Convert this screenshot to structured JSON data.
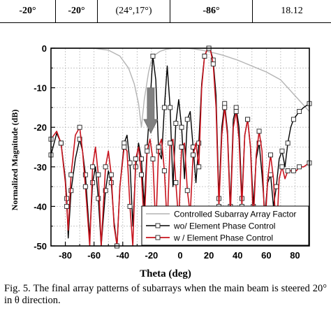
{
  "table_row": [
    "-20°",
    "-20°",
    "(24°,17°)",
    "-86°",
    "18.12"
  ],
  "table_bold": [
    true,
    true,
    false,
    true,
    false
  ],
  "caption": "Fig. 5. The final array patterns of subarrays when the main beam is steered 20° in θ direction.",
  "colors": {
    "af": "#b4b4b4",
    "wo": "#000000",
    "w": "#c8141e",
    "arrow": "#808080",
    "marker_fill": "#ffffff"
  },
  "chart_data": {
    "type": "line",
    "xlabel": "Theta (deg)",
    "ylabel": "Normalized Magnitude (dB)",
    "xlim": [
      -90,
      90
    ],
    "ylim": [
      -50,
      0
    ],
    "xticks": [
      -80,
      -60,
      -40,
      -20,
      0,
      20,
      40,
      60,
      80
    ],
    "yticks": [
      0,
      -10,
      -20,
      -30,
      -40,
      -50
    ],
    "grid": true,
    "legend_position": "bottom-right",
    "annotation": "gray down arrow near theta = -20 deg",
    "series": [
      {
        "name": "Controlled Subarray Array Factor",
        "marker": "none",
        "x": [
          -90,
          -80,
          -70,
          -60,
          -50,
          -42,
          -36,
          -32,
          -29,
          -27,
          -25,
          -22,
          -20,
          -18,
          -14,
          -10,
          -5,
          0,
          5,
          10,
          15,
          20,
          25,
          30,
          40,
          50,
          60,
          70,
          75,
          80,
          85,
          90
        ],
        "y": [
          0,
          0,
          0,
          0,
          -0.5,
          -2,
          -5,
          -9,
          -14,
          -20,
          -13,
          -6,
          -3,
          -1.8,
          -0.8,
          -0.3,
          0,
          0,
          0,
          -0.2,
          -0.5,
          -0.9,
          -1.3,
          -1.8,
          -3,
          -4.5,
          -6,
          -8,
          -10,
          -12,
          -14,
          -16
        ]
      },
      {
        "name": "wo/ Element Phase Control",
        "marker": "square",
        "x": [
          -90,
          -86,
          -83,
          -80,
          -79,
          -78,
          -76,
          -73,
          -70,
          -68,
          -66,
          -63,
          -61,
          -59,
          -57,
          -55,
          -52,
          -50,
          -48,
          -46,
          -44,
          -42,
          -39,
          -37,
          -35,
          -33,
          -31,
          -29,
          -27,
          -25,
          -23,
          -21,
          -19,
          -17,
          -15,
          -13,
          -11,
          -9,
          -7,
          -5,
          -3,
          -1,
          1,
          3,
          5,
          7,
          9,
          11,
          13,
          15,
          17,
          19,
          20,
          21,
          23,
          25,
          27,
          29,
          31,
          33,
          35,
          37,
          39,
          41,
          43,
          45,
          47,
          49,
          51,
          53,
          55,
          57,
          59,
          61,
          63,
          65,
          67,
          69,
          71,
          73,
          75,
          77,
          79,
          81,
          83,
          86,
          90
        ],
        "y": [
          -27,
          -21.5,
          -24,
          -33,
          -38,
          -48,
          -36,
          -28,
          -23,
          -26,
          -32,
          -48,
          -34,
          -30,
          -38,
          -50,
          -36,
          -31,
          -34,
          -44,
          -50,
          -35,
          -24,
          -22,
          -29,
          -45,
          -30,
          -24,
          -28,
          -40,
          -25,
          -14,
          -2,
          -8,
          -26,
          -28,
          -15,
          -4.5,
          -15,
          -35,
          -19,
          -13,
          -20,
          -33,
          -18,
          -16,
          -25,
          -34,
          -24,
          -9,
          -2,
          -0.2,
          0,
          -0.3,
          -3,
          -12,
          -38,
          -20,
          -14,
          -21,
          -40,
          -18,
          -15,
          -20,
          -38,
          -22,
          -18,
          -25,
          -40,
          -28,
          -24,
          -32,
          -42,
          -34,
          -32,
          -40,
          -35,
          -28,
          -26,
          -30,
          -24,
          -20,
          -18,
          -17,
          -16,
          -15,
          -14
        ]
      },
      {
        "name": "w  / Element Phase Control",
        "marker": "square",
        "x": [
          -90,
          -86,
          -83,
          -80,
          -79,
          -78,
          -76,
          -73,
          -70,
          -68,
          -66,
          -63,
          -61,
          -59,
          -57,
          -55,
          -52,
          -50,
          -48,
          -46,
          -44,
          -42,
          -39,
          -37,
          -35,
          -33,
          -31,
          -29,
          -27,
          -25,
          -23,
          -21,
          -19,
          -17,
          -15,
          -13,
          -11,
          -9,
          -7,
          -5,
          -3,
          -1,
          1,
          3,
          5,
          7,
          9,
          11,
          13,
          15,
          17,
          19,
          20,
          21,
          23,
          25,
          27,
          29,
          31,
          33,
          35,
          37,
          39,
          41,
          43,
          45,
          47,
          49,
          51,
          53,
          55,
          57,
          59,
          61,
          63,
          65,
          67,
          69,
          71,
          73,
          75,
          77,
          79,
          81,
          83,
          86,
          90
        ],
        "y": [
          -23,
          -21,
          -24,
          -34,
          -40,
          -46,
          -32,
          -22,
          -20,
          -26,
          -35,
          -50,
          -30,
          -25,
          -32,
          -50,
          -30,
          -26,
          -32,
          -45,
          -50,
          -35,
          -25,
          -26,
          -40,
          -50,
          -28,
          -25,
          -32,
          -45,
          -26,
          -23,
          -28,
          -46,
          -25,
          -23,
          -31,
          -45,
          -24,
          -23,
          -34,
          -44,
          -25,
          -24,
          -36,
          -42,
          -27,
          -24,
          -30,
          -10,
          -2,
          -0.2,
          0,
          -0.3,
          -4,
          -15,
          -40,
          -22,
          -15,
          -22,
          -42,
          -20,
          -16,
          -23,
          -40,
          -22,
          -18,
          -25,
          -44,
          -27,
          -21,
          -26,
          -46,
          -33,
          -27,
          -33,
          -48,
          -33,
          -30,
          -33,
          -31,
          -31,
          -31,
          -31,
          -30,
          -30,
          -29
        ]
      }
    ]
  }
}
